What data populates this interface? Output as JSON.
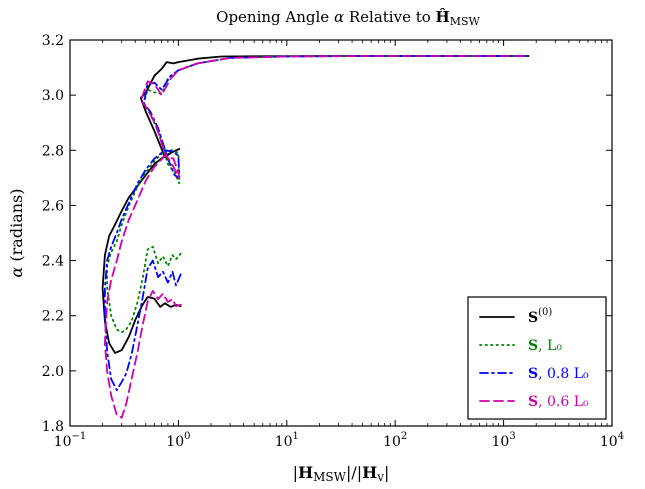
{
  "chart_data": {
    "type": "line",
    "title": "Opening Angle α Relative to Ĥ_MSW",
    "xlabel": "|H_MSW|/|H_v|",
    "ylabel": "α (radians)",
    "xscale": "log",
    "xlim": [
      0.1,
      10000
    ],
    "ylim": [
      1.8,
      3.2
    ],
    "xticks": [
      {
        "value": 0.1,
        "base": "10",
        "exp": "−1"
      },
      {
        "value": 1,
        "base": "10",
        "exp": "0"
      },
      {
        "value": 10,
        "base": "10",
        "exp": "1"
      },
      {
        "value": 100,
        "base": "10",
        "exp": "2"
      },
      {
        "value": 1000,
        "base": "10",
        "exp": "3"
      },
      {
        "value": 10000,
        "base": "10",
        "exp": "4"
      }
    ],
    "yticks": [
      "1.8",
      "2.0",
      "2.2",
      "2.4",
      "2.6",
      "2.8",
      "3.0",
      "3.2"
    ],
    "grid": false,
    "legend_position": "bottom-right",
    "series": [
      {
        "name": "S(0)",
        "legend": {
          "main": "S",
          "sup": "(0)",
          "rest": ""
        },
        "color": "#000000",
        "style": "solid",
        "segments": [
          [
            [
              1.05,
              2.235
            ],
            [
              0.95,
              2.24
            ],
            [
              0.85,
              2.232
            ],
            [
              0.75,
              2.245
            ],
            [
              0.68,
              2.232
            ],
            [
              0.6,
              2.262
            ],
            [
              0.52,
              2.268
            ],
            [
              0.46,
              2.235
            ],
            [
              0.4,
              2.185
            ],
            [
              0.35,
              2.125
            ],
            [
              0.3,
              2.075
            ],
            [
              0.26,
              2.065
            ],
            [
              0.23,
              2.1
            ],
            [
              0.21,
              2.18
            ],
            [
              0.2,
              2.3
            ],
            [
              0.21,
              2.42
            ],
            [
              0.23,
              2.49
            ],
            [
              0.26,
              2.53
            ],
            [
              0.3,
              2.58
            ],
            [
              0.35,
              2.63
            ],
            [
              0.4,
              2.66
            ],
            [
              0.5,
              2.71
            ],
            [
              0.6,
              2.75
            ],
            [
              0.75,
              2.78
            ],
            [
              0.9,
              2.795
            ],
            [
              1.02,
              2.805
            ],
            [
              0.95,
              2.8
            ],
            [
              0.85,
              2.79
            ],
            [
              0.75,
              2.775
            ],
            [
              0.6,
              2.87
            ],
            [
              0.5,
              2.94
            ],
            [
              0.45,
              2.99
            ],
            [
              0.5,
              3.01
            ],
            [
              0.6,
              3.07
            ],
            [
              0.7,
              3.095
            ],
            [
              0.78,
              3.12
            ],
            [
              0.9,
              3.115
            ],
            [
              1.0,
              3.12
            ],
            [
              1.5,
              3.132
            ],
            [
              2.5,
              3.14
            ],
            [
              5,
              3.141
            ],
            [
              20,
              3.142
            ],
            [
              100,
              3.142
            ],
            [
              1700,
              3.142
            ]
          ]
        ]
      },
      {
        "name": "S, L0",
        "legend": {
          "main": "S",
          "sup": "",
          "rest": ", L₀"
        },
        "color": "#008000",
        "style": "dotted",
        "segments": [
          [
            [
              1.05,
              2.425
            ],
            [
              0.95,
              2.405
            ],
            [
              0.88,
              2.42
            ],
            [
              0.8,
              2.38
            ],
            [
              0.72,
              2.415
            ],
            [
              0.65,
              2.39
            ],
            [
              0.58,
              2.45
            ],
            [
              0.52,
              2.44
            ],
            [
              0.47,
              2.34
            ],
            [
              0.42,
              2.25
            ],
            [
              0.37,
              2.18
            ],
            [
              0.33,
              2.15
            ],
            [
              0.3,
              2.14
            ],
            [
              0.27,
              2.15
            ],
            [
              0.24,
              2.2
            ],
            [
              0.22,
              2.3
            ],
            [
              0.22,
              2.38
            ],
            [
              0.24,
              2.43
            ],
            [
              0.27,
              2.47
            ],
            [
              0.3,
              2.53
            ],
            [
              0.35,
              2.6
            ],
            [
              0.42,
              2.67
            ],
            [
              0.5,
              2.72
            ],
            [
              0.6,
              2.76
            ],
            [
              0.75,
              2.8
            ],
            [
              0.9,
              2.8
            ],
            [
              1.0,
              2.79
            ],
            [
              1.02,
              2.68
            ],
            [
              0.92,
              2.72
            ],
            [
              0.8,
              2.75
            ],
            [
              0.65,
              2.87
            ],
            [
              0.55,
              2.93
            ],
            [
              0.48,
              2.97
            ],
            [
              0.52,
              3.02
            ],
            [
              0.6,
              3.01
            ],
            [
              0.7,
              3.005
            ],
            [
              0.8,
              3.06
            ],
            [
              1.0,
              3.09
            ],
            [
              1.5,
              3.115
            ],
            [
              3,
              3.135
            ],
            [
              10,
              3.14
            ],
            [
              50,
              3.142
            ],
            [
              1700,
              3.142
            ]
          ]
        ]
      },
      {
        "name": "S, 0.8 L0",
        "legend": {
          "main": "S",
          "sup": "",
          "rest": ", 0.8 L₀"
        },
        "color": "#0000ff",
        "style": "dashdot",
        "segments": [
          [
            [
              1.05,
              2.35
            ],
            [
              0.95,
              2.31
            ],
            [
              0.88,
              2.36
            ],
            [
              0.8,
              2.32
            ],
            [
              0.72,
              2.36
            ],
            [
              0.65,
              2.34
            ],
            [
              0.58,
              2.4
            ],
            [
              0.52,
              2.37
            ],
            [
              0.47,
              2.27
            ],
            [
              0.42,
              2.17
            ],
            [
              0.37,
              2.06
            ],
            [
              0.33,
              1.99
            ],
            [
              0.3,
              1.96
            ],
            [
              0.27,
              1.93
            ],
            [
              0.24,
              1.97
            ],
            [
              0.22,
              2.07
            ],
            [
              0.21,
              2.2
            ],
            [
              0.21,
              2.3
            ],
            [
              0.22,
              2.4
            ],
            [
              0.24,
              2.45
            ],
            [
              0.27,
              2.5
            ],
            [
              0.3,
              2.55
            ],
            [
              0.35,
              2.61
            ],
            [
              0.42,
              2.68
            ],
            [
              0.5,
              2.73
            ],
            [
              0.6,
              2.77
            ],
            [
              0.75,
              2.8
            ],
            [
              0.9,
              2.795
            ],
            [
              1.0,
              2.78
            ],
            [
              1.02,
              2.7
            ],
            [
              0.92,
              2.71
            ],
            [
              0.8,
              2.77
            ],
            [
              0.65,
              2.88
            ],
            [
              0.55,
              2.94
            ],
            [
              0.48,
              2.97
            ],
            [
              0.52,
              3.04
            ],
            [
              0.6,
              3.045
            ],
            [
              0.7,
              3.02
            ],
            [
              0.85,
              3.07
            ],
            [
              1.0,
              3.09
            ],
            [
              1.5,
              3.115
            ],
            [
              3,
              3.135
            ],
            [
              10,
              3.14
            ],
            [
              50,
              3.142
            ],
            [
              1700,
              3.142
            ]
          ]
        ]
      },
      {
        "name": "S, 0.6 L0",
        "legend": {
          "main": "S",
          "sup": "",
          "rest": ", 0.6 L₀"
        },
        "color": "#cc00aa",
        "style": "dashed",
        "segments": [
          [
            [
              1.05,
              2.24
            ],
            [
              0.95,
              2.235
            ],
            [
              0.88,
              2.26
            ],
            [
              0.8,
              2.25
            ],
            [
              0.72,
              2.28
            ],
            [
              0.65,
              2.26
            ],
            [
              0.58,
              2.29
            ],
            [
              0.52,
              2.25
            ],
            [
              0.47,
              2.17
            ],
            [
              0.42,
              2.07
            ],
            [
              0.37,
              1.97
            ],
            [
              0.33,
              1.88
            ],
            [
              0.3,
              1.83
            ],
            [
              0.27,
              1.84
            ],
            [
              0.24,
              1.91
            ],
            [
              0.22,
              2.0
            ],
            [
              0.21,
              2.1
            ],
            [
              0.22,
              2.25
            ],
            [
              0.24,
              2.33
            ],
            [
              0.27,
              2.4
            ],
            [
              0.3,
              2.47
            ],
            [
              0.35,
              2.55
            ],
            [
              0.42,
              2.62
            ],
            [
              0.5,
              2.69
            ],
            [
              0.6,
              2.74
            ],
            [
              0.75,
              2.78
            ],
            [
              0.9,
              2.77
            ],
            [
              1.0,
              2.72
            ],
            [
              1.02,
              2.7
            ],
            [
              0.9,
              2.74
            ],
            [
              0.75,
              2.79
            ],
            [
              0.62,
              2.89
            ],
            [
              0.52,
              2.95
            ],
            [
              0.45,
              2.98
            ],
            [
              0.52,
              3.05
            ],
            [
              0.6,
              3.04
            ],
            [
              0.7,
              3.0
            ],
            [
              0.85,
              3.06
            ],
            [
              1.0,
              3.09
            ],
            [
              1.5,
              3.115
            ],
            [
              3,
              3.135
            ],
            [
              10,
              3.14
            ],
            [
              50,
              3.142
            ],
            [
              1700,
              3.142
            ]
          ]
        ]
      }
    ]
  }
}
